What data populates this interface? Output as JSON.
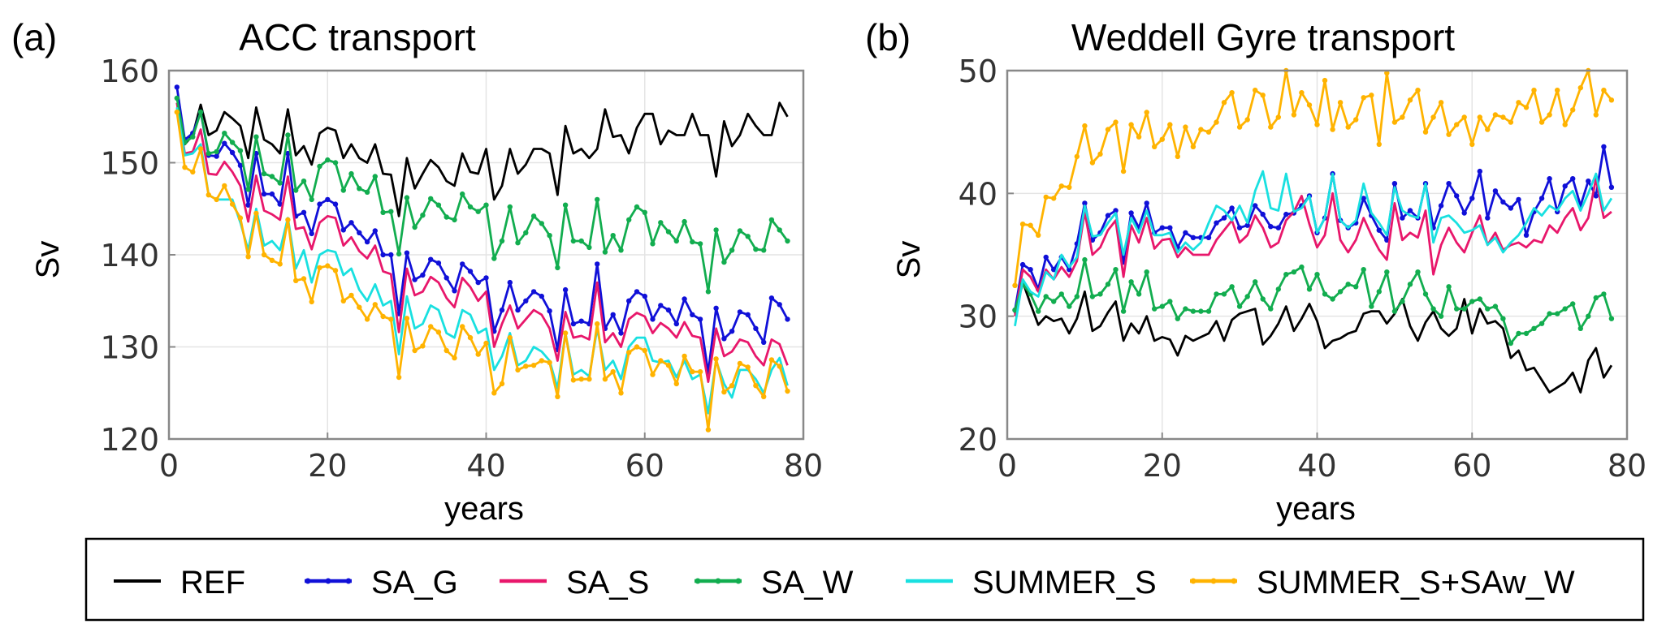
{
  "chart_data": [
    {
      "type": "line",
      "panel_label": "(a)",
      "title": "ACC transport",
      "xlabel": "years",
      "ylabel": "Sv",
      "xlim": [
        0,
        80
      ],
      "ylim": [
        120,
        160
      ],
      "xticks": [
        "0",
        "20",
        "40",
        "60",
        "80"
      ],
      "yticks": [
        "120",
        "130",
        "140",
        "150",
        "160"
      ],
      "grid": true,
      "x_start": 1,
      "series": [
        {
          "name": "REF",
          "values": [
            155.5,
            152.0,
            153.0,
            156.3,
            153.0,
            153.5,
            155.5,
            154.8,
            154.0,
            150.5,
            156.0,
            152.5,
            152.0,
            151.0,
            155.8,
            150.8,
            151.8,
            149.8,
            153.2,
            153.8,
            153.5,
            150.5,
            152.0,
            150.5,
            150.0,
            152.0,
            148.8,
            148.7,
            144.2,
            150.5,
            147.2,
            148.8,
            150.3,
            149.5,
            148.0,
            147.5,
            151.0,
            149.0,
            148.8,
            151.5,
            146.0,
            147.5,
            151.5,
            148.8,
            149.8,
            151.5,
            151.5,
            151.0,
            146.5,
            154.0,
            151.0,
            151.5,
            150.5,
            151.5,
            155.8,
            152.8,
            153.0,
            151.0,
            153.8,
            155.3,
            155.3,
            152.0,
            153.5,
            153.0,
            153.0,
            155.3,
            153.0,
            153.0,
            148.5,
            154.5,
            151.8,
            153.0,
            155.3,
            154.0,
            153.0,
            153.0,
            156.5,
            155.0
          ]
        },
        {
          "name": "SA_G",
          "values": [
            158.2,
            152.5,
            153.2,
            155.5,
            150.8,
            150.7,
            152.1,
            151.1,
            149.7,
            145.4,
            151.0,
            146.6,
            146.6,
            145.5,
            151.0,
            144.2,
            144.6,
            142.3,
            145.5,
            146.0,
            145.5,
            142.7,
            143.5,
            142.4,
            141.4,
            142.6,
            140.0,
            140.0,
            133.6,
            140.2,
            137.3,
            137.8,
            139.5,
            139.1,
            137.5,
            136.1,
            139.0,
            138.2,
            137.0,
            137.5,
            131.7,
            134.0,
            137.0,
            134.0,
            135.0,
            136.0,
            135.5,
            133.9,
            129.7,
            136.2,
            132.5,
            132.8,
            132.5,
            139.0,
            132.0,
            133.5,
            131.5,
            135.0,
            136.0,
            135.5,
            133.0,
            134.5,
            134.0,
            132.5,
            135.2,
            133.5,
            133.0,
            127.2,
            134.2,
            130.9,
            131.7,
            133.8,
            133.5,
            132.0,
            130.5,
            135.3,
            134.6,
            133.0
          ]
        },
        {
          "name": "SA_S",
          "values": [
            156.5,
            151.0,
            151.2,
            153.6,
            148.8,
            148.7,
            150.1,
            149.0,
            147.5,
            143.6,
            148.6,
            144.8,
            144.4,
            143.8,
            148.5,
            142.8,
            143.0,
            140.6,
            143.5,
            144.2,
            144.0,
            141.0,
            141.9,
            140.4,
            139.6,
            141.0,
            138.2,
            137.9,
            131.6,
            138.5,
            135.6,
            136.0,
            137.6,
            137.0,
            135.3,
            134.3,
            137.5,
            136.5,
            135.0,
            136.0,
            130.0,
            132.5,
            134.5,
            132.0,
            133.0,
            134.0,
            133.5,
            132.0,
            128.5,
            133.8,
            131.0,
            131.2,
            130.8,
            137.0,
            130.5,
            131.5,
            130.0,
            133.0,
            133.7,
            133.3,
            131.5,
            132.6,
            132.0,
            131.0,
            132.7,
            131.2,
            131.0,
            126.2,
            132.0,
            129.0,
            129.5,
            130.8,
            130.5,
            129.0,
            128.0,
            130.8,
            130.3,
            128.0
          ]
        },
        {
          "name": "SA_W",
          "values": [
            157.0,
            152.2,
            152.8,
            155.5,
            151.0,
            151.2,
            153.2,
            152.2,
            151.3,
            147.1,
            152.8,
            148.8,
            148.5,
            147.8,
            153.0,
            147.0,
            148.0,
            146.0,
            149.6,
            150.3,
            150.0,
            147.0,
            148.8,
            147.2,
            146.8,
            148.5,
            144.6,
            144.7,
            140.1,
            146.2,
            143.0,
            144.3,
            146.1,
            145.4,
            144.1,
            143.8,
            146.6,
            145.2,
            144.7,
            145.4,
            139.6,
            141.5,
            145.2,
            141.3,
            142.4,
            144.2,
            143.4,
            142.1,
            138.6,
            145.4,
            141.5,
            141.5,
            140.8,
            146.0,
            140.3,
            142.1,
            140.5,
            143.8,
            145.2,
            144.6,
            141.2,
            143.5,
            142.5,
            141.5,
            143.6,
            141.4,
            141.2,
            136.0,
            142.7,
            139.2,
            140.5,
            142.6,
            142.0,
            140.6,
            140.5,
            143.8,
            142.7,
            141.5
          ]
        },
        {
          "name": "SUMMER_S",
          "values": [
            156.0,
            150.8,
            151.0,
            152.0,
            146.5,
            146.0,
            146.0,
            146.0,
            143.5,
            140.5,
            145.0,
            141.0,
            141.5,
            140.5,
            144.0,
            138.5,
            140.5,
            137.0,
            140.0,
            140.5,
            140.3,
            137.8,
            138.5,
            136.2,
            135.0,
            136.8,
            134.5,
            135.0,
            129.2,
            135.5,
            132.0,
            132.5,
            134.5,
            134.0,
            131.5,
            131.0,
            134.0,
            133.5,
            131.5,
            132.0,
            127.5,
            129.0,
            131.5,
            128.0,
            128.5,
            130.0,
            129.5,
            128.5,
            125.5,
            131.5,
            127.0,
            127.5,
            126.8,
            132.0,
            127.5,
            128.5,
            126.5,
            130.0,
            131.0,
            131.0,
            128.5,
            128.3,
            128.5,
            126.7,
            128.5,
            126.5,
            127.0,
            122.8,
            128.5,
            126.0,
            124.5,
            127.5,
            127.5,
            126.5,
            125.0,
            127.5,
            128.8,
            125.8
          ]
        },
        {
          "name": "SUMMER_S+SAw_W",
          "values": [
            155.5,
            149.5,
            149.0,
            151.5,
            146.5,
            146.0,
            147.5,
            145.5,
            144.0,
            139.8,
            144.5,
            140.0,
            139.4,
            139.0,
            143.8,
            137.2,
            137.4,
            134.9,
            138.6,
            138.8,
            138.3,
            135.0,
            135.6,
            134.3,
            133.0,
            134.6,
            133.3,
            133.0,
            126.7,
            133.1,
            129.6,
            130.1,
            132.2,
            131.6,
            129.6,
            128.8,
            132.2,
            131.0,
            129.2,
            130.4,
            125.0,
            126.0,
            131.0,
            127.5,
            127.9,
            128.0,
            128.5,
            128.3,
            124.6,
            131.5,
            126.4,
            126.5,
            126.5,
            132.5,
            126.5,
            127.3,
            125.0,
            129.4,
            130.0,
            129.6,
            127.0,
            128.5,
            128.0,
            126.0,
            129.0,
            127.3,
            127.3,
            121.0,
            128.7,
            125.1,
            125.8,
            128.2,
            127.8,
            125.8,
            124.6,
            128.6,
            127.9,
            125.2
          ]
        }
      ]
    },
    {
      "type": "line",
      "panel_label": "(b)",
      "title": "Weddell Gyre transport",
      "xlabel": "years",
      "ylabel": "Sv",
      "xlim": [
        0,
        80
      ],
      "ylim": [
        20,
        50
      ],
      "xticks": [
        "0",
        "20",
        "40",
        "60",
        "80"
      ],
      "yticks": [
        "20",
        "30",
        "40",
        "50"
      ],
      "grid": true,
      "x_start": 1,
      "series": [
        {
          "name": "REF",
          "values": [
            30.2,
            32.8,
            31.0,
            29.3,
            30.0,
            29.6,
            29.8,
            28.6,
            29.8,
            32.0,
            28.8,
            29.2,
            30.3,
            31.2,
            28.0,
            29.4,
            28.6,
            30.0,
            28.0,
            28.3,
            28.1,
            26.8,
            28.4,
            28.0,
            28.3,
            28.6,
            29.6,
            28.0,
            29.7,
            30.2,
            30.4,
            30.6,
            27.7,
            28.4,
            29.4,
            30.8,
            28.8,
            29.8,
            31.0,
            29.6,
            27.4,
            28.0,
            28.2,
            28.6,
            28.8,
            30.2,
            30.4,
            30.4,
            29.4,
            30.2,
            31.4,
            29.2,
            28.0,
            29.5,
            30.4,
            29.0,
            28.4,
            29.0,
            31.4,
            28.6,
            30.6,
            29.4,
            29.6,
            29.0,
            26.6,
            27.2,
            25.6,
            25.8,
            24.8,
            23.8,
            24.2,
            24.6,
            25.4,
            23.8,
            26.4,
            27.4,
            25.0,
            26.0
          ]
        },
        {
          "name": "SA_G",
          "values": [
            30.5,
            34.2,
            33.8,
            32.2,
            34.8,
            33.8,
            34.8,
            33.8,
            35.9,
            39.2,
            36.2,
            36.8,
            38.2,
            38.6,
            34.4,
            38.4,
            37.2,
            39.2,
            36.8,
            37.2,
            37.2,
            35.6,
            36.8,
            36.4,
            36.4,
            36.4,
            37.6,
            38.0,
            38.8,
            37.2,
            37.4,
            39.0,
            38.3,
            37.3,
            37.2,
            38.3,
            38.4,
            39.0,
            39.8,
            36.8,
            38.0,
            41.6,
            37.8,
            37.2,
            37.6,
            39.6,
            38.2,
            37.0,
            36.2,
            40.8,
            38.0,
            38.6,
            38.0,
            40.8,
            37.2,
            39.0,
            40.8,
            39.8,
            38.4,
            39.6,
            41.8,
            38.0,
            40.2,
            39.3,
            38.8,
            39.5,
            36.6,
            38.5,
            39.6,
            41.2,
            38.5,
            40.6,
            41.2,
            39.0,
            41.0,
            39.8,
            43.8,
            40.5
          ]
        },
        {
          "name": "SA_S",
          "values": [
            30.0,
            33.8,
            33.2,
            32.0,
            33.8,
            33.0,
            34.0,
            33.2,
            34.5,
            38.5,
            35.0,
            35.6,
            37.0,
            37.8,
            33.2,
            37.4,
            36.0,
            38.0,
            35.5,
            36.2,
            36.3,
            34.8,
            35.6,
            35.0,
            35.0,
            35.0,
            36.2,
            37.0,
            37.8,
            36.0,
            36.6,
            38.2,
            37.2,
            35.6,
            36.0,
            37.8,
            38.5,
            39.8,
            37.5,
            35.6,
            36.6,
            40.0,
            36.2,
            35.2,
            36.2,
            38.0,
            36.6,
            35.4,
            34.6,
            39.2,
            36.2,
            36.8,
            36.4,
            38.6,
            33.4,
            35.8,
            37.2,
            36.0,
            35.2,
            36.8,
            38.2,
            35.8,
            36.8,
            35.4,
            35.8,
            36.0,
            35.6,
            36.2,
            36.0,
            37.4,
            36.8,
            38.0,
            38.8,
            37.0,
            38.0,
            41.2,
            38.0,
            38.5
          ]
        },
        {
          "name": "SA_W",
          "values": [
            30.5,
            32.6,
            31.8,
            30.4,
            31.6,
            31.2,
            31.8,
            30.8,
            31.6,
            34.6,
            31.6,
            31.8,
            32.6,
            33.8,
            30.4,
            32.8,
            31.8,
            33.6,
            30.6,
            30.8,
            31.2,
            29.8,
            30.6,
            30.4,
            30.4,
            30.4,
            31.8,
            31.8,
            32.4,
            30.8,
            31.6,
            32.8,
            31.4,
            30.6,
            32.2,
            33.4,
            33.6,
            34.0,
            32.2,
            33.4,
            31.8,
            31.4,
            32.0,
            32.6,
            32.4,
            33.8,
            30.8,
            32.0,
            33.6,
            30.4,
            31.2,
            32.6,
            33.6,
            31.8,
            30.6,
            30.0,
            32.4,
            30.6,
            30.6,
            31.2,
            31.4,
            30.6,
            30.8,
            29.8,
            27.8,
            28.6,
            28.6,
            29.0,
            29.4,
            30.2,
            30.2,
            30.6,
            31.0,
            29.0,
            30.0,
            31.5,
            31.8,
            29.8
          ]
        },
        {
          "name": "SUMMER_S",
          "values": [
            29.2,
            33.0,
            32.0,
            31.6,
            33.6,
            33.0,
            35.0,
            34.0,
            34.8,
            39.0,
            36.5,
            36.6,
            37.6,
            38.4,
            35.0,
            38.0,
            36.8,
            38.6,
            36.6,
            36.6,
            36.8,
            35.2,
            36.0,
            35.4,
            36.0,
            37.6,
            39.0,
            38.6,
            37.8,
            39.0,
            37.6,
            40.2,
            41.8,
            38.8,
            38.6,
            41.6,
            38.5,
            38.8,
            39.8,
            36.8,
            38.0,
            41.6,
            37.8,
            37.2,
            37.8,
            40.8,
            38.4,
            37.6,
            36.6,
            40.5,
            38.6,
            38.2,
            38.0,
            40.8,
            36.0,
            38.0,
            38.2,
            37.6,
            36.8,
            37.0,
            37.4,
            35.8,
            36.4,
            35.2,
            36.0,
            36.6,
            37.6,
            38.8,
            38.2,
            39.0,
            38.6,
            39.6,
            40.2,
            38.6,
            40.0,
            41.6,
            38.6,
            39.6
          ]
        },
        {
          "name": "SUMMER_S+SAw_W",
          "values": [
            32.5,
            37.5,
            37.4,
            36.6,
            39.7,
            39.6,
            40.6,
            40.5,
            43.0,
            45.5,
            42.5,
            43.2,
            45.2,
            45.8,
            41.8,
            45.6,
            44.6,
            46.6,
            43.8,
            44.4,
            45.6,
            43.0,
            45.4,
            43.8,
            45.2,
            45.0,
            45.8,
            47.4,
            48.2,
            45.4,
            46.0,
            48.4,
            48.0,
            45.4,
            46.2,
            50.0,
            46.4,
            48.2,
            47.2,
            45.6,
            49.2,
            45.2,
            47.4,
            45.4,
            46.0,
            47.8,
            48.0,
            44.0,
            49.8,
            45.8,
            46.2,
            47.6,
            48.4,
            45.0,
            46.2,
            47.4,
            44.8,
            45.6,
            46.2,
            44.0,
            46.2,
            45.2,
            46.4,
            46.2,
            45.8,
            47.4,
            47.0,
            48.4,
            45.8,
            46.4,
            48.4,
            45.6,
            46.8,
            48.6,
            50.0,
            46.4,
            48.4,
            47.6
          ]
        }
      ]
    }
  ],
  "legend": {
    "placement": "bottom",
    "entries": [
      {
        "label": "REF",
        "color": "#000000",
        "markers": false
      },
      {
        "label": "SA_G",
        "color": "#1010d8",
        "markers": true
      },
      {
        "label": "SA_S",
        "color": "#e8176b",
        "markers": false
      },
      {
        "label": "SA_W",
        "color": "#12ad4f",
        "markers": true
      },
      {
        "label": "SUMMER_S",
        "color": "#19e0e0",
        "markers": false
      },
      {
        "label": "SUMMER_S+SAw_W",
        "color": "#ffb300",
        "markers": true
      }
    ]
  }
}
